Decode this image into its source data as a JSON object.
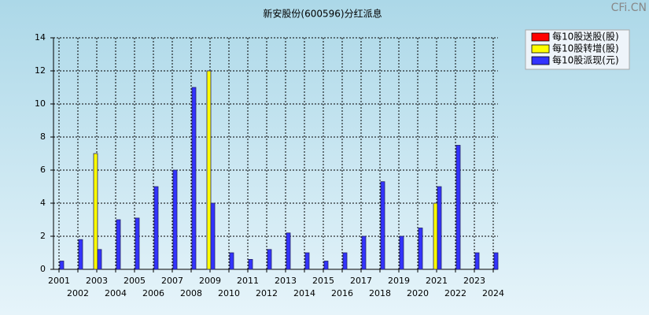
{
  "chart_data": {
    "type": "bar",
    "title": "新安股份(600596)分红派息",
    "watermark": "CFi.CN",
    "categories": [
      "2001",
      "2002",
      "2003",
      "2004",
      "2005",
      "2006",
      "2007",
      "2008",
      "2009",
      "2010",
      "2011",
      "2012",
      "2013",
      "2014",
      "2015",
      "2016",
      "2017",
      "2018",
      "2019",
      "2020",
      "2021",
      "2022",
      "2023",
      "2024"
    ],
    "series": [
      {
        "name": "每10股送股(股)",
        "color": "#ff0000",
        "values": [
          null,
          null,
          null,
          null,
          null,
          null,
          null,
          null,
          null,
          null,
          null,
          null,
          null,
          null,
          null,
          null,
          null,
          null,
          null,
          null,
          null,
          null,
          null,
          null
        ]
      },
      {
        "name": "每10股转增(股)",
        "color": "#ffff00",
        "values": [
          null,
          null,
          7,
          null,
          null,
          null,
          null,
          null,
          12,
          null,
          null,
          null,
          null,
          null,
          null,
          null,
          null,
          null,
          null,
          null,
          4,
          null,
          null,
          null
        ]
      },
      {
        "name": "每10股派现(元)",
        "color": "#3333ff",
        "values": [
          0.5,
          1.8,
          1.2,
          3.0,
          3.1,
          5.0,
          6.0,
          11.0,
          4.0,
          1.0,
          0.6,
          1.2,
          2.2,
          1.0,
          0.5,
          1.0,
          2.0,
          5.3,
          2.0,
          2.5,
          5.0,
          7.5,
          1.0,
          1.0
        ]
      }
    ],
    "ylim": [
      0,
      14
    ],
    "yticks": [
      0,
      2,
      4,
      6,
      8,
      10,
      12,
      14
    ],
    "grid": true,
    "legend": "top-right"
  }
}
